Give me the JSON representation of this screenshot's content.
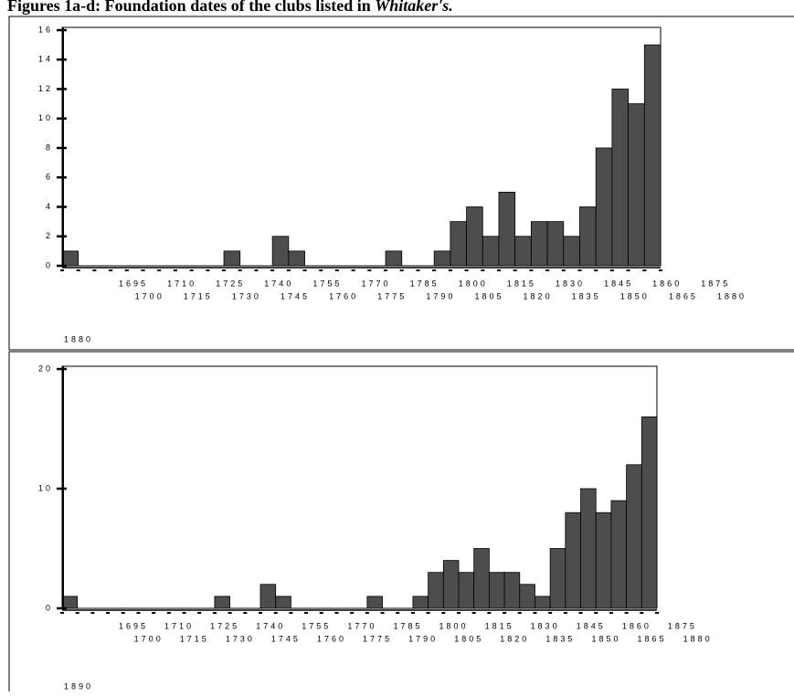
{
  "page_title": "Figures 1a-d: Foundation dates of the clubs listed in",
  "page_title_italic": "Whitaker's.",
  "chart_data": [
    {
      "type": "histogram",
      "color": "#4d4d4d",
      "bins": [
        1695,
        1700,
        1705,
        1710,
        1715,
        1720,
        1725,
        1730,
        1735,
        1740,
        1745,
        1750,
        1755,
        1760,
        1765,
        1770,
        1775,
        1780,
        1785,
        1790,
        1795,
        1800,
        1805,
        1810,
        1815,
        1820,
        1825,
        1830,
        1835,
        1840,
        1845,
        1850,
        1855,
        1860,
        1865,
        1870,
        1875,
        1880
      ],
      "values": [
        1,
        0,
        0,
        0,
        0,
        0,
        0,
        0,
        0,
        0,
        1,
        0,
        0,
        2,
        1,
        0,
        0,
        0,
        0,
        0,
        1,
        0,
        0,
        1,
        3,
        4,
        2,
        5,
        2,
        3,
        3,
        2,
        4,
        8,
        12,
        11,
        15
      ],
      "xticks": [
        1695,
        1700,
        1710,
        1715,
        1725,
        1730,
        1740,
        1745,
        1755,
        1760,
        1770,
        1775,
        1785,
        1790,
        1800,
        1805,
        1815,
        1820,
        1830,
        1835,
        1845,
        1850,
        1860,
        1865,
        1875,
        1880
      ],
      "ylim": [
        0,
        16
      ],
      "yticks": [
        0,
        2,
        4,
        6,
        8,
        10,
        12,
        14,
        16
      ],
      "footer": "1880"
    },
    {
      "type": "histogram",
      "color": "#4d4d4d",
      "bins": [
        1695,
        1700,
        1705,
        1710,
        1715,
        1720,
        1725,
        1730,
        1735,
        1740,
        1745,
        1750,
        1755,
        1760,
        1765,
        1770,
        1775,
        1780,
        1785,
        1790,
        1795,
        1800,
        1805,
        1810,
        1815,
        1820,
        1825,
        1830,
        1835,
        1840,
        1845,
        1850,
        1855,
        1860,
        1865,
        1870,
        1875,
        1880,
        1885,
        1890
      ],
      "values": [
        1,
        0,
        0,
        0,
        0,
        0,
        0,
        0,
        0,
        0,
        1,
        0,
        0,
        2,
        1,
        0,
        0,
        0,
        0,
        0,
        1,
        0,
        0,
        1,
        3,
        4,
        3,
        5,
        3,
        3,
        2,
        1,
        5,
        8,
        10,
        8,
        9,
        12,
        16
      ],
      "xticks": [
        1695,
        1700,
        1710,
        1715,
        1725,
        1730,
        1740,
        1745,
        1755,
        1760,
        1770,
        1775,
        1785,
        1790,
        1800,
        1805,
        1815,
        1820,
        1830,
        1835,
        1845,
        1850,
        1860,
        1865,
        1875,
        1880
      ],
      "ylim": [
        0,
        20
      ],
      "yticks": [
        0,
        10,
        20
      ],
      "footer": "1890"
    }
  ]
}
